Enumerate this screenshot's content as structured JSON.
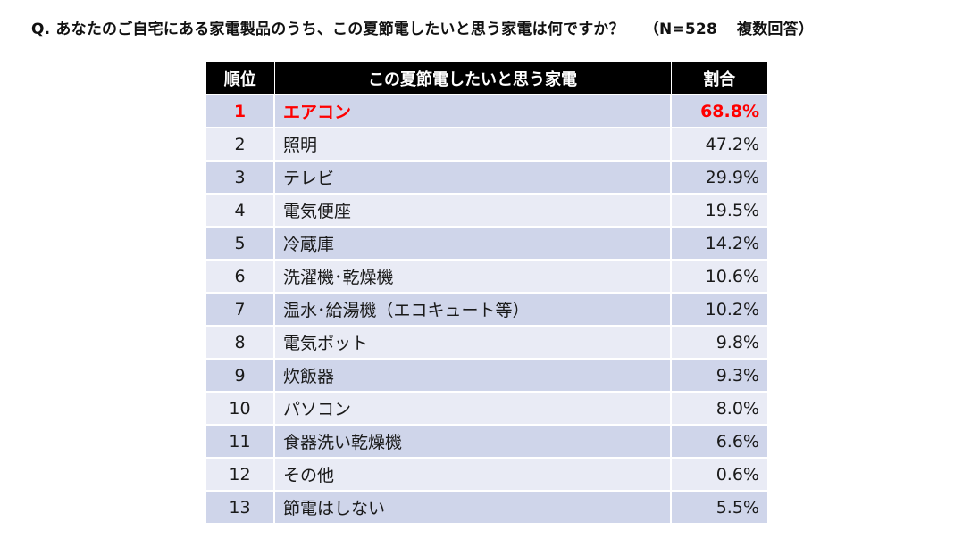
{
  "question": {
    "text": "Q.  あなたのご自宅にある家電製品のうち、この夏節電したいと思う家電は何ですか？",
    "sample": "（N=528",
    "note": "複数回答）"
  },
  "table": {
    "headers": {
      "rank": "順位",
      "item": "この夏節電したいと思う家電",
      "share": "割合"
    },
    "rows": [
      {
        "rank": "1",
        "item": "エアコン",
        "share": "68.8%"
      },
      {
        "rank": "2",
        "item": "照明",
        "share": "47.2%"
      },
      {
        "rank": "3",
        "item": "テレビ",
        "share": "29.9%"
      },
      {
        "rank": "4",
        "item": "電気便座",
        "share": "19.5%"
      },
      {
        "rank": "5",
        "item": "冷蔵庫",
        "share": "14.2%"
      },
      {
        "rank": "6",
        "item": "洗濯機･乾燥機",
        "share": "10.6%"
      },
      {
        "rank": "7",
        "item": "温水･給湯機（エコキュート等）",
        "share": "10.2%"
      },
      {
        "rank": "8",
        "item": "電気ポット",
        "share": "9.8%"
      },
      {
        "rank": "9",
        "item": "炊飯器",
        "share": "9.3%"
      },
      {
        "rank": "10",
        "item": "パソコン",
        "share": "8.0%"
      },
      {
        "rank": "11",
        "item": "食器洗い乾燥機",
        "share": "6.6%"
      },
      {
        "rank": "12",
        "item": "その他",
        "share": "0.6%"
      },
      {
        "rank": "13",
        "item": "節電はしない",
        "share": "5.5%"
      }
    ]
  },
  "colors": {
    "header_bg": "#000000",
    "row_dark": "#cfd5ea",
    "row_light": "#e9ebf5",
    "highlight": "#ff0000"
  }
}
